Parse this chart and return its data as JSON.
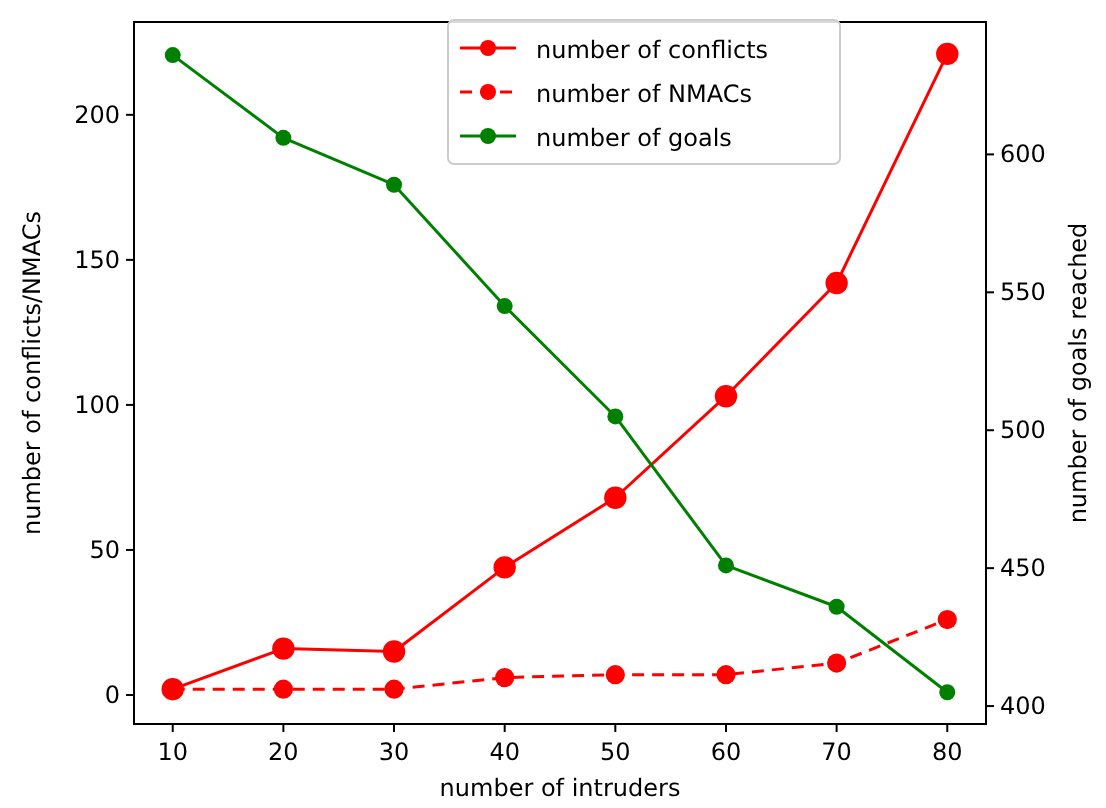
{
  "chart_data": {
    "type": "line",
    "xlabel": "number of intruders",
    "ylabel": "number of conflicts/NMACs",
    "y2label": "number of goals reached",
    "x": [
      10,
      20,
      30,
      40,
      50,
      60,
      70,
      80
    ],
    "series": [
      {
        "name": "number of conflicts",
        "color": "#ff0000",
        "values": [
          2,
          16,
          15,
          44,
          68,
          103,
          142,
          221
        ],
        "line_style": "solid"
      },
      {
        "name": "number of NMACs",
        "color": "#ff0000",
        "values": [
          2,
          2,
          2,
          6,
          7,
          7,
          11,
          26
        ],
        "line_style": "dashed"
      },
      {
        "name": "number of goals",
        "color": "#008000",
        "values": [
          636,
          606,
          589,
          545,
          505,
          451,
          436,
          405
        ],
        "axis": "y2",
        "line_style": "solid"
      }
    ],
    "xlim": [
      6.5,
      83.5
    ],
    "xticks": [
      10,
      20,
      30,
      40,
      50,
      60,
      70,
      80
    ],
    "ylim": [
      -10,
      232
    ],
    "yticks": [
      0,
      50,
      100,
      150,
      200
    ],
    "y2lim": [
      393.5,
      648
    ],
    "y2ticks": [
      400,
      450,
      500,
      550,
      600
    ],
    "marker": "circle",
    "legend": "top",
    "grid": false
  }
}
